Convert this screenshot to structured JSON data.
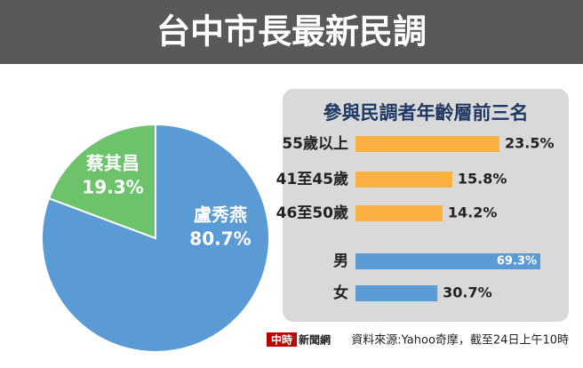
{
  "header": {
    "title": "台中市長最新民調"
  },
  "chart_data": [
    {
      "type": "pie",
      "categories": [
        "盧秀燕",
        "蔡其昌"
      ],
      "values": [
        80.7,
        19.3
      ],
      "value_labels": [
        "80.7%",
        "19.3%"
      ],
      "colors": [
        "#5b9bd5",
        "#6cc36b"
      ]
    },
    {
      "type": "barh",
      "title": "參與民調者年齡層前三名",
      "categories": [
        "55歲以上",
        "41至45歲",
        "46至50歲"
      ],
      "values": [
        23.5,
        15.8,
        14.2
      ],
      "value_labels": [
        "23.5%",
        "15.8%",
        "14.2%"
      ],
      "color": "#fbb040"
    },
    {
      "type": "barh",
      "categories": [
        "男",
        "女"
      ],
      "values": [
        69.3,
        30.7
      ],
      "value_labels": [
        "69.3%",
        "30.7%"
      ],
      "color": "#5b9bd5"
    }
  ],
  "footer": {
    "logo": "中時",
    "logo_text": "新聞網",
    "source": "資料來源:Yahoo奇摩，截至24日上午10時"
  }
}
